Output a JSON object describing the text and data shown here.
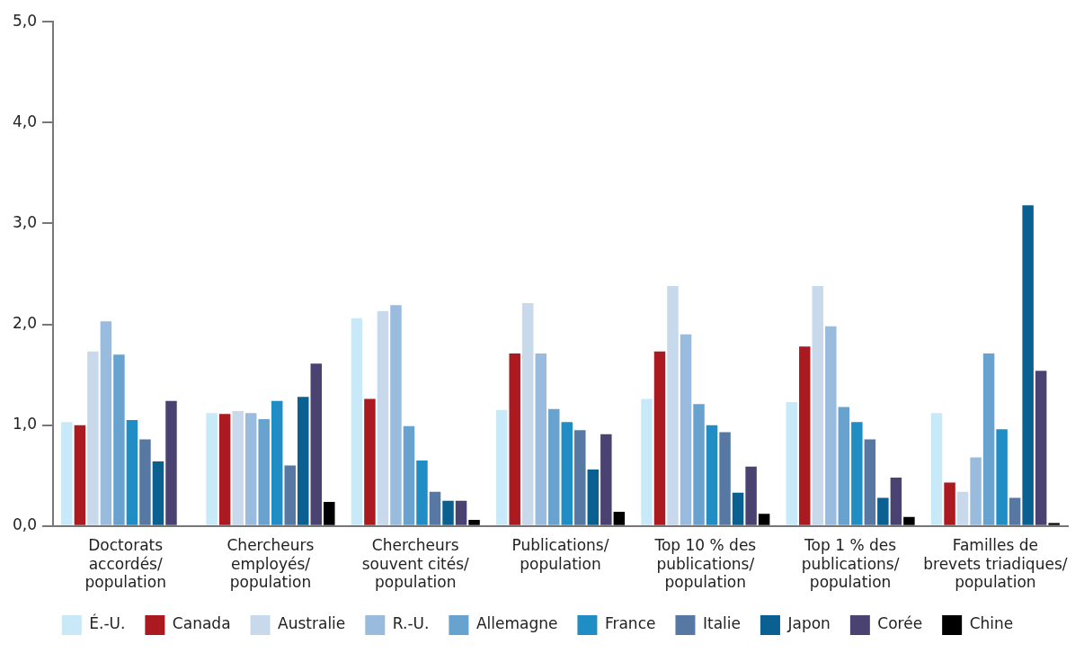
{
  "chart_data": {
    "type": "bar",
    "categories": [
      "Doctorats\naccordés/\npopulation",
      "Chercheurs\nemployés/\npopulation",
      "Chercheurs\nsouvent cités/\npopulation",
      "Publications/\npopulation",
      "Top 10 % des\npublications/\npopulation",
      "Top 1 % des\npublications/\npopulation",
      "Familles de\nbrevets triadiques/\npopulation"
    ],
    "series": [
      {
        "name": "É.-U.",
        "color": "#c8e9f8",
        "values": [
          1.03,
          1.12,
          2.06,
          1.15,
          1.26,
          1.23,
          1.12
        ]
      },
      {
        "name": "Canada",
        "color": "#ab1a20",
        "values": [
          1.0,
          1.11,
          1.26,
          1.71,
          1.73,
          1.78,
          0.43
        ]
      },
      {
        "name": "Australie",
        "color": "#c7d9ea",
        "values": [
          1.73,
          1.14,
          2.13,
          2.21,
          2.38,
          2.38,
          0.34
        ]
      },
      {
        "name": "R.-U.",
        "color": "#99bbdd",
        "values": [
          2.03,
          1.12,
          2.19,
          1.71,
          1.9,
          1.98,
          0.68
        ]
      },
      {
        "name": "Allemagne",
        "color": "#68a3cf",
        "values": [
          1.7,
          1.06,
          0.99,
          1.16,
          1.21,
          1.18,
          1.71
        ]
      },
      {
        "name": "France",
        "color": "#218dc5",
        "values": [
          1.05,
          1.24,
          0.65,
          1.03,
          1.0,
          1.03,
          0.96
        ]
      },
      {
        "name": "Italie",
        "color": "#5678a3",
        "values": [
          0.86,
          0.6,
          0.34,
          0.95,
          0.93,
          0.86,
          0.28
        ]
      },
      {
        "name": "Japon",
        "color": "#0a6090",
        "values": [
          0.64,
          1.28,
          0.25,
          0.56,
          0.33,
          0.28,
          3.18
        ]
      },
      {
        "name": "Corée",
        "color": "#4a4270",
        "values": [
          1.24,
          1.61,
          0.25,
          0.91,
          0.59,
          0.48,
          1.54
        ]
      },
      {
        "name": "Chine",
        "color": "#000000",
        "values": [
          null,
          0.24,
          0.06,
          0.14,
          0.12,
          0.09,
          0.03
        ]
      }
    ],
    "ylim": [
      0,
      5
    ],
    "yticks": [
      {
        "value": 0,
        "label": "0,0"
      },
      {
        "value": 1,
        "label": "1,0"
      },
      {
        "value": 2,
        "label": "2,0"
      },
      {
        "value": 3,
        "label": "3,0"
      },
      {
        "value": 4,
        "label": "4,0"
      },
      {
        "value": 5,
        "label": "5,0"
      }
    ],
    "grid": false,
    "legend": "bottom"
  }
}
